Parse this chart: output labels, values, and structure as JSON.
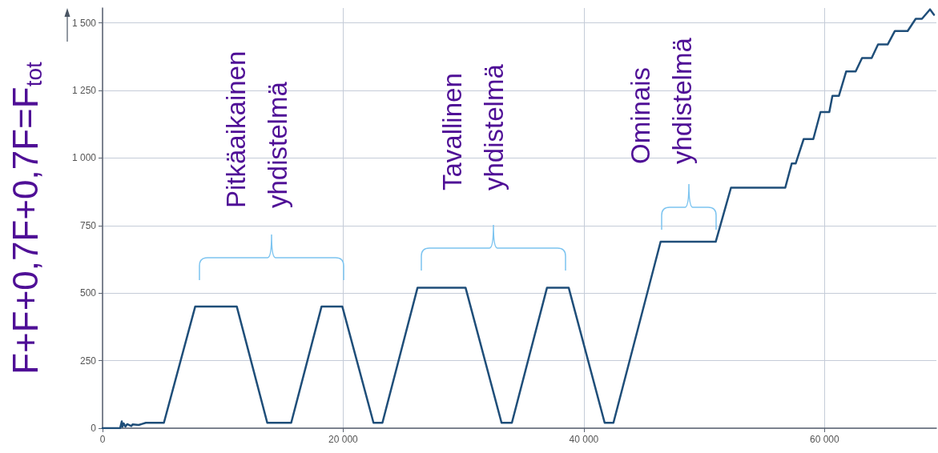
{
  "chart_data": {
    "type": "line",
    "ylabel": "F+F+0,7F+0,7F=F$_{tot}$",
    "xlim": [
      0,
      69300
    ],
    "ylim": [
      0,
      1555
    ],
    "xticks": [
      0,
      {
        "value": 20000,
        "label": "20 000"
      },
      {
        "value": 40000,
        "label": "40 000"
      },
      {
        "value": 60000,
        "label": "60 000"
      }
    ],
    "yticks": [
      0,
      250,
      500,
      750,
      {
        "value": 1000,
        "label": "1 000"
      },
      {
        "value": 1250,
        "label": "1 250"
      },
      {
        "value": 1500,
        "label": "1 500"
      }
    ],
    "grid": true,
    "marker": "none",
    "line_style": "solid",
    "series": [
      {
        "color": "#1f4e79",
        "x": [
          0,
          1460,
          1600,
          1650,
          1750,
          1900,
          2050,
          2400,
          2500,
          3000,
          3300,
          3600,
          5100,
          7700,
          11160,
          13690,
          15680,
          18200,
          19930,
          22520,
          23260,
          26180,
          30170,
          33160,
          34020,
          36940,
          38740,
          41730,
          42460,
          46380,
          50960,
          52230,
          56740,
          57280,
          57610,
          58270,
          59070,
          59670,
          60400,
          60660,
          61200,
          61800,
          62590,
          63120,
          63920,
          64450,
          65250,
          65850,
          66910,
          67580,
          68100,
          68770,
          69100
        ],
        "values": [
          0,
          0,
          25,
          5,
          18,
          6,
          15,
          8,
          14,
          12,
          16,
          20,
          20,
          450,
          450,
          20,
          20,
          450,
          450,
          20,
          20,
          520,
          520,
          20,
          20,
          520,
          520,
          20,
          20,
          690,
          690,
          890,
          890,
          980,
          980,
          1070,
          1070,
          1170,
          1170,
          1230,
          1230,
          1320,
          1320,
          1370,
          1370,
          1420,
          1420,
          1470,
          1470,
          1515,
          1515,
          1550,
          1530
        ]
      }
    ],
    "annotations": [
      "Pitkäaikainen\nyhdistelmä",
      "Tavallinen\nyhdistelmä",
      "Ominais\nyhdistelmä"
    ]
  }
}
